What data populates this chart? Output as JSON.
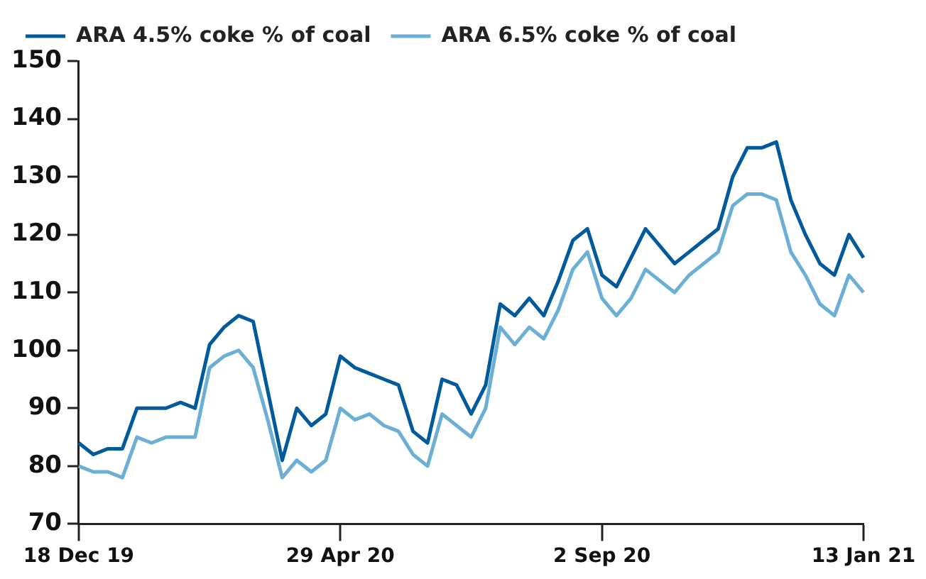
{
  "chart_data": {
    "type": "line",
    "categories": [
      "18 Dec 19",
      null,
      null,
      null,
      null,
      null,
      null,
      null,
      null,
      null,
      null,
      null,
      null,
      null,
      null,
      null,
      null,
      null,
      "29 Apr 20",
      null,
      null,
      null,
      null,
      null,
      null,
      null,
      null,
      null,
      null,
      null,
      null,
      null,
      null,
      null,
      null,
      null,
      "2 Sep 20",
      null,
      null,
      null,
      null,
      null,
      null,
      null,
      null,
      null,
      null,
      null,
      null,
      null,
      null,
      null,
      null,
      null,
      "13 Jan 21"
    ],
    "series": [
      {
        "name": "ARA 4.5% coke % of coal",
        "color": "#005a9c",
        "values": [
          84,
          82,
          83,
          83,
          90,
          90,
          90,
          91,
          90,
          101,
          104,
          106,
          105,
          93,
          81,
          90,
          87,
          89,
          99,
          97,
          96,
          95,
          94,
          86,
          84,
          95,
          94,
          89,
          94,
          108,
          106,
          109,
          106,
          112,
          119,
          121,
          113,
          111,
          116,
          121,
          118,
          115,
          117,
          119,
          121,
          130,
          135,
          135,
          136,
          126,
          120,
          115,
          113,
          120,
          116
        ]
      },
      {
        "name": "ARA 6.5% coke % of coal",
        "color": "#6baed6",
        "values": [
          80,
          79,
          79,
          78,
          85,
          84,
          85,
          85,
          85,
          97,
          99,
          100,
          97,
          88,
          78,
          81,
          79,
          81,
          90,
          88,
          89,
          87,
          86,
          82,
          80,
          89,
          87,
          85,
          90,
          104,
          101,
          104,
          102,
          107,
          114,
          117,
          109,
          106,
          109,
          114,
          112,
          110,
          113,
          115,
          117,
          125,
          127,
          127,
          126,
          117,
          113,
          108,
          106,
          113,
          110
        ]
      }
    ],
    "ylim": [
      70,
      150
    ],
    "yticks": [
      70,
      80,
      90,
      100,
      110,
      120,
      130,
      140,
      150
    ],
    "grid": false,
    "legend": "top left",
    "marker": "none",
    "line_style": "solid"
  }
}
